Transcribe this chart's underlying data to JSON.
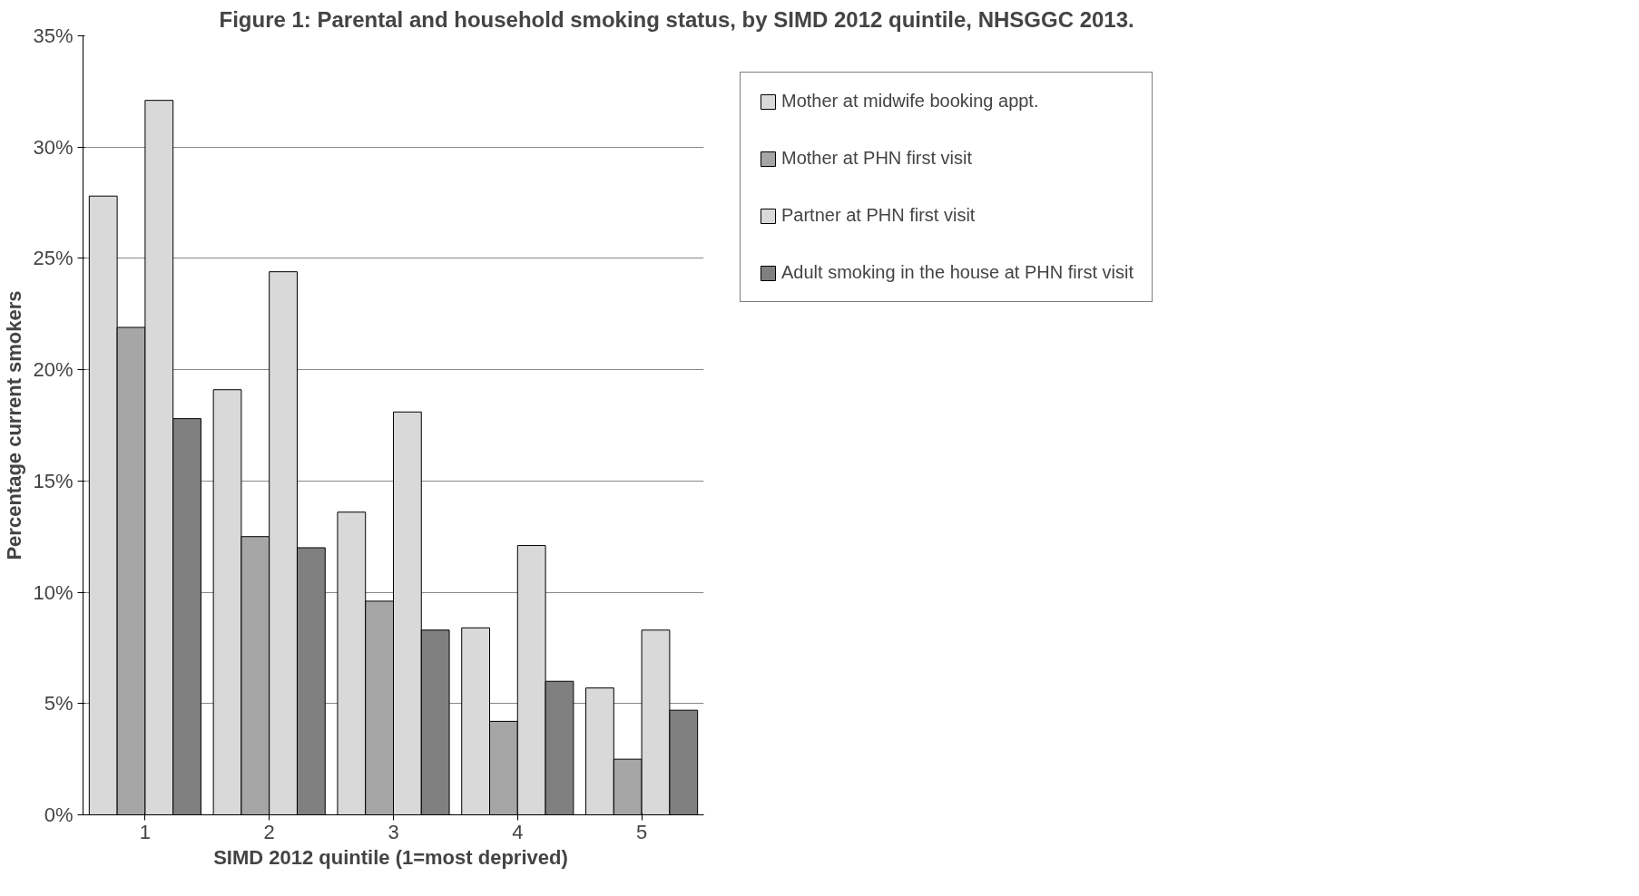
{
  "chart_data": {
    "type": "bar",
    "title": "Figure 1: Parental and household smoking status, by SIMD 2012 quintile, NHSGGC 2013.",
    "xlabel": "SIMD 2012 quintile  (1=most deprived)",
    "ylabel": "Percentage current smokers",
    "categories": [
      "1",
      "2",
      "3",
      "4",
      "5"
    ],
    "series": [
      {
        "name": "Mother at midwife booking appt.",
        "color": "#d9d9d9",
        "values": [
          27.8,
          19.1,
          13.6,
          8.4,
          5.7
        ]
      },
      {
        "name": "Mother at PHN first visit",
        "color": "#a6a6a6",
        "values": [
          21.9,
          12.5,
          9.6,
          4.2,
          2.5
        ]
      },
      {
        "name": "Partner at PHN first visit",
        "color": "#d9d9d9",
        "values": [
          32.1,
          24.4,
          18.1,
          12.1,
          8.3
        ]
      },
      {
        "name": "Adult smoking in the house at PHN first visit",
        "color": "#808080",
        "values": [
          17.8,
          12.0,
          8.3,
          6.0,
          4.7
        ]
      }
    ],
    "ylim": [
      0,
      35
    ],
    "yticks": [
      {
        "value": 0,
        "label": "0%"
      },
      {
        "value": 5,
        "label": "5%"
      },
      {
        "value": 10,
        "label": "10%"
      },
      {
        "value": 15,
        "label": "15%"
      },
      {
        "value": 20,
        "label": "20%"
      },
      {
        "value": 25,
        "label": "25%"
      },
      {
        "value": 30,
        "label": "30%"
      },
      {
        "value": 35,
        "label": "35%"
      }
    ],
    "grid": "y",
    "legend": "right"
  }
}
